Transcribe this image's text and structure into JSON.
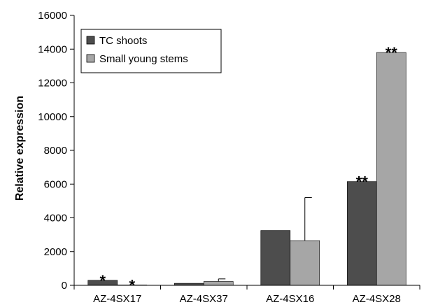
{
  "chart_data": {
    "type": "bar",
    "ylabel": "Relative expression",
    "xlabel": "",
    "ylim": [
      0,
      16000
    ],
    "y_ticks": [
      "0",
      "2000",
      "4000",
      "6000",
      "8000",
      "10000",
      "12000",
      "14000",
      "16000"
    ],
    "grid": false,
    "legend_position": "top-left",
    "categories": [
      "AZ-4SX17",
      "AZ-4SX37",
      "AZ-4SX16",
      "AZ-4SX28"
    ],
    "series": [
      {
        "name": "TC shoots",
        "color": "#4d4d4d",
        "values": [
          300,
          120,
          3250,
          6150
        ],
        "error": [
          0,
          0,
          0,
          0
        ],
        "annotations": [
          "*",
          "",
          "",
          "**"
        ]
      },
      {
        "name": "Small young stems",
        "color": "#a6a6a6",
        "values": [
          20,
          230,
          2650,
          13800
        ],
        "error": [
          0,
          150,
          2550,
          0
        ],
        "annotations": [
          "*",
          "",
          "",
          "**"
        ]
      }
    ]
  }
}
